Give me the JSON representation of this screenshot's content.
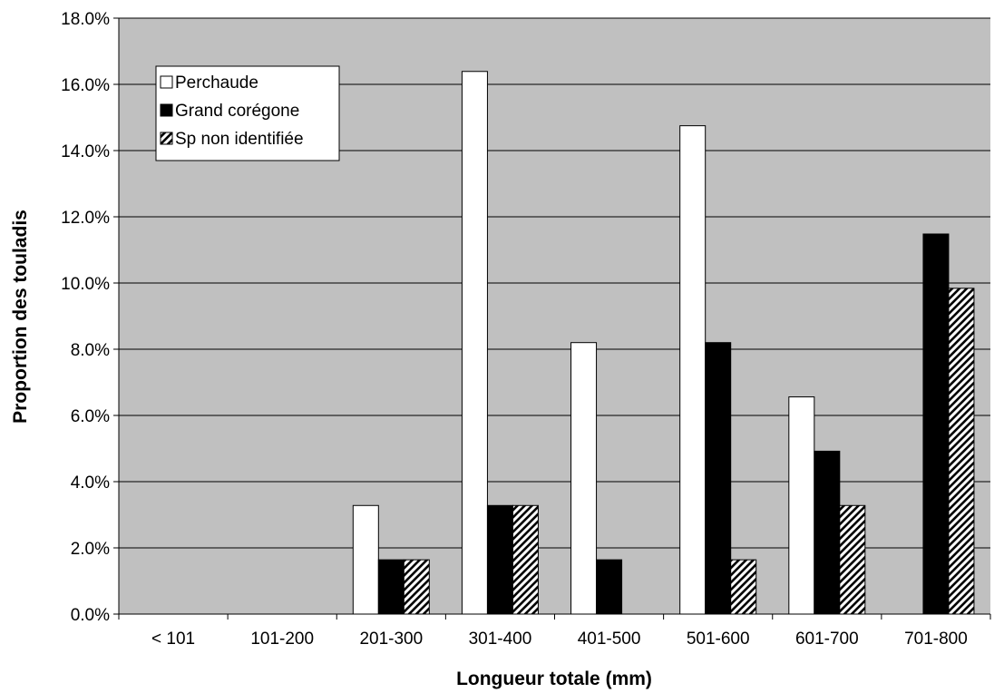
{
  "chart_data": {
    "type": "bar",
    "title": "",
    "xlabel": "Longueur totale (mm)",
    "ylabel": "Proportion des touladis",
    "ylim": [
      0,
      18
    ],
    "y_tick_step": 2,
    "y_tick_format": "percent_1dp",
    "grid": true,
    "legend_position": "top-left",
    "plot_background": "#c0c0c0",
    "categories": [
      "< 101",
      "101-200",
      "201-300",
      "301-400",
      "401-500",
      "501-600",
      "601-700",
      "701-800"
    ],
    "series": [
      {
        "name": "Perchaude",
        "style": "white",
        "values": [
          0,
          0,
          3.28,
          16.39,
          8.2,
          14.75,
          6.56,
          0
        ]
      },
      {
        "name": "Grand corégone",
        "style": "black",
        "values": [
          0,
          0,
          1.64,
          3.28,
          1.64,
          8.2,
          4.92,
          11.48
        ]
      },
      {
        "name": "Sp non identifiée",
        "style": "hatched",
        "values": [
          0,
          0,
          1.64,
          3.28,
          0,
          1.64,
          3.28,
          9.84
        ]
      }
    ]
  }
}
